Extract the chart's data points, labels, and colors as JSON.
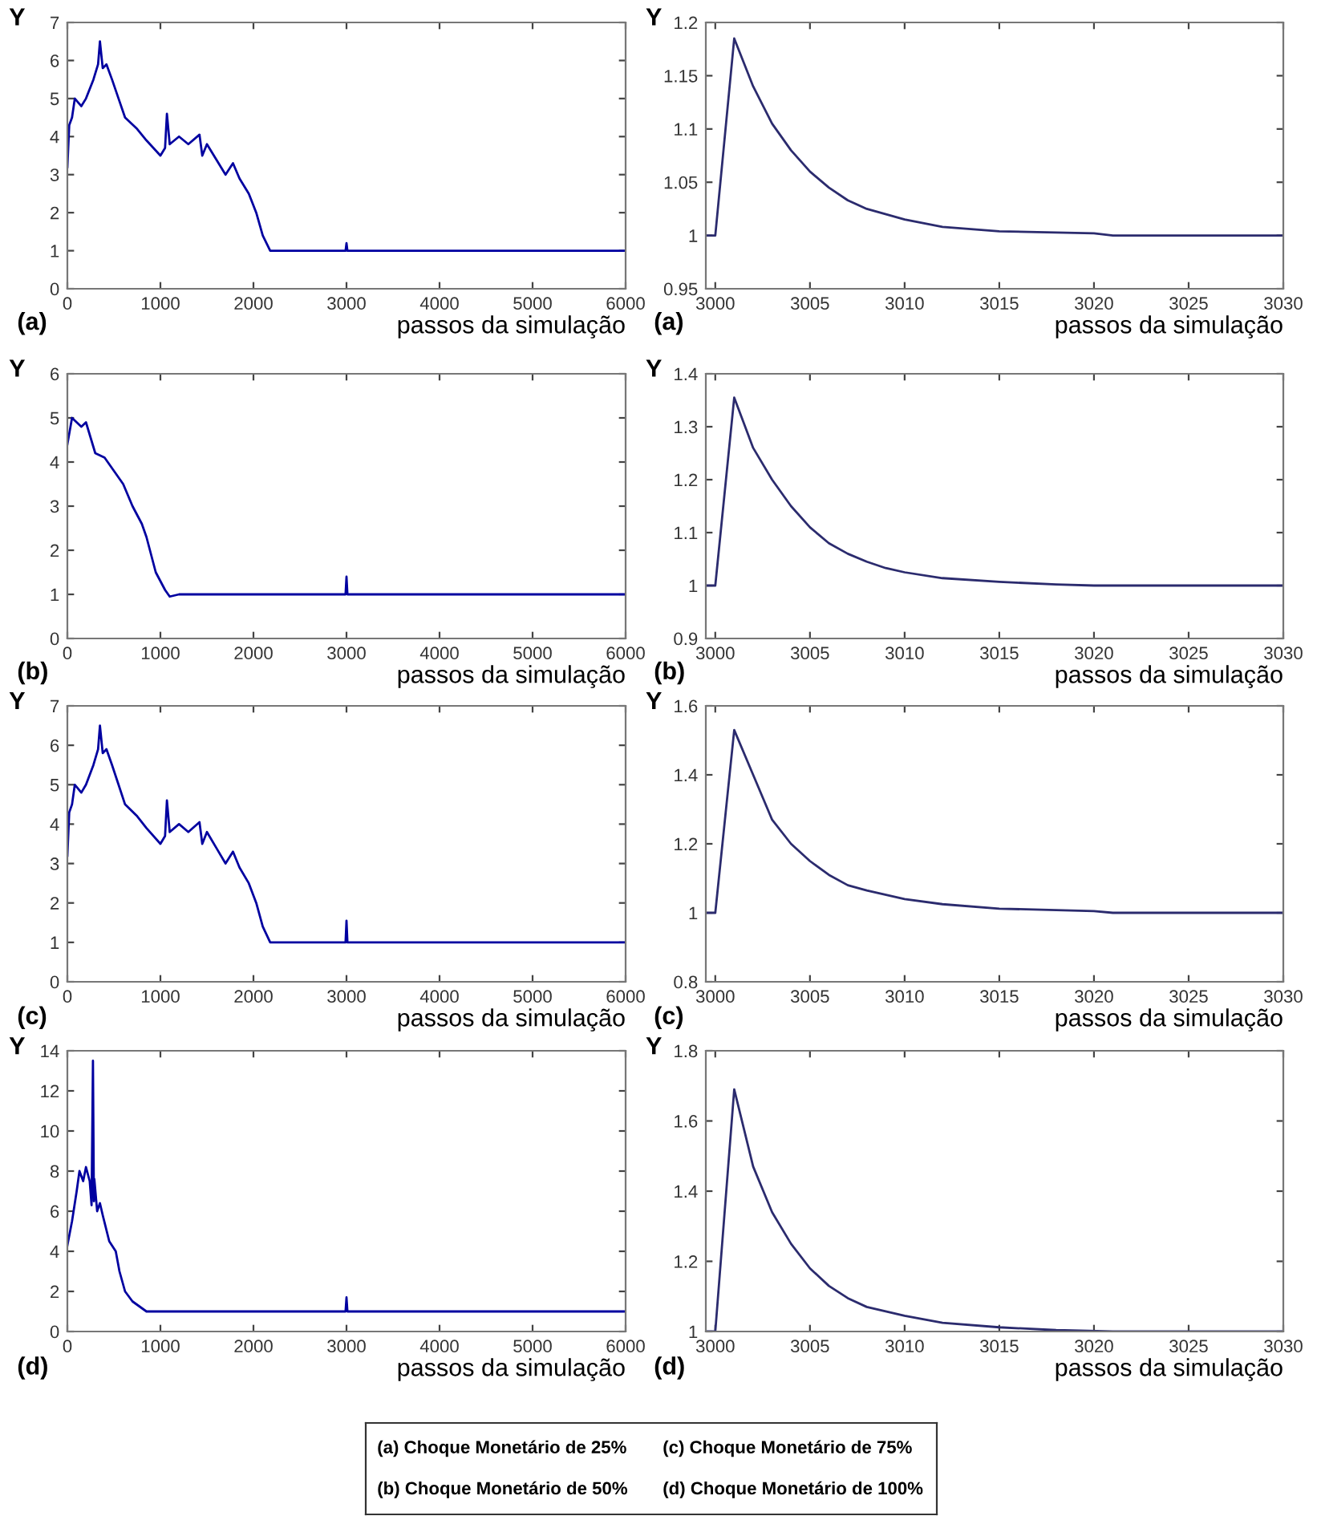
{
  "chart_data": [
    {
      "type": "line",
      "xlabel": "passos da simulação",
      "ylabel": "Y",
      "annotations": [
        "(a)"
      ],
      "xlim": [
        0,
        6000
      ],
      "ylim": [
        0,
        7
      ],
      "xticks": [
        0,
        1000,
        2000,
        3000,
        4000,
        5000,
        6000
      ],
      "yticks": [
        0,
        1,
        2,
        3,
        4,
        5,
        6,
        7
      ],
      "x": [
        0,
        20,
        50,
        80,
        150,
        200,
        280,
        330,
        350,
        380,
        420,
        480,
        550,
        620,
        750,
        850,
        1000,
        1050,
        1070,
        1100,
        1200,
        1300,
        1420,
        1450,
        1500,
        1600,
        1700,
        1780,
        1850,
        1950,
        2030,
        2100,
        2180,
        2990,
        3000,
        3010,
        6000
      ],
      "series": [
        {
          "color": "#0000a0",
          "values": [
            3.2,
            4.3,
            4.5,
            5.0,
            4.8,
            5.0,
            5.5,
            5.9,
            6.5,
            5.8,
            5.9,
            5.5,
            5.0,
            4.5,
            4.2,
            3.9,
            3.5,
            3.7,
            4.6,
            3.8,
            4.0,
            3.8,
            4.05,
            3.5,
            3.8,
            3.4,
            3.0,
            3.3,
            2.9,
            2.5,
            2.0,
            1.4,
            1.0,
            1.0,
            1.2,
            1.0,
            1.0
          ]
        }
      ]
    },
    {
      "type": "line",
      "xlabel": "passos da simulação",
      "ylabel": "Y",
      "annotations": [
        "(a)"
      ],
      "xlim": [
        2999.5,
        3030
      ],
      "ylim": [
        0.95,
        1.2
      ],
      "xticks": [
        3000,
        3005,
        3010,
        3015,
        3020,
        3025,
        3030
      ],
      "yticks": [
        0.95,
        1,
        1.05,
        1.1,
        1.15,
        1.2
      ],
      "x": [
        2999.5,
        3000,
        3001,
        3002,
        3003,
        3004,
        3005,
        3006,
        3007,
        3008,
        3010,
        3012,
        3015,
        3020,
        3021,
        3030
      ],
      "series": [
        {
          "color": "#2b2b6e",
          "values": [
            1,
            1,
            1.185,
            1.14,
            1.105,
            1.08,
            1.06,
            1.045,
            1.033,
            1.025,
            1.015,
            1.008,
            1.004,
            1.002,
            1.0,
            1.0
          ]
        }
      ]
    },
    {
      "type": "line",
      "xlabel": "passos da simulação",
      "ylabel": "Y",
      "annotations": [
        "(b)"
      ],
      "xlim": [
        0,
        6000
      ],
      "ylim": [
        0,
        6
      ],
      "xticks": [
        0,
        1000,
        2000,
        3000,
        4000,
        5000,
        6000
      ],
      "yticks": [
        0,
        1,
        2,
        3,
        4,
        5,
        6
      ],
      "x": [
        0,
        50,
        150,
        200,
        300,
        400,
        500,
        600,
        700,
        800,
        850,
        950,
        1050,
        1100,
        1200,
        2990,
        3000,
        3010,
        6000
      ],
      "series": [
        {
          "color": "#0000a0",
          "values": [
            4.4,
            5.0,
            4.8,
            4.9,
            4.2,
            4.1,
            3.8,
            3.5,
            3.0,
            2.6,
            2.3,
            1.5,
            1.1,
            0.95,
            1.0,
            1.0,
            1.4,
            1.0,
            1.0
          ]
        }
      ]
    },
    {
      "type": "line",
      "xlabel": "passos da simulação",
      "ylabel": "Y",
      "annotations": [
        "(b)"
      ],
      "xlim": [
        2999.5,
        3030
      ],
      "ylim": [
        0.9,
        1.4
      ],
      "xticks": [
        3000,
        3005,
        3010,
        3015,
        3020,
        3025,
        3030
      ],
      "yticks": [
        0.9,
        1,
        1.1,
        1.2,
        1.3,
        1.4
      ],
      "x": [
        2999.5,
        3000,
        3001,
        3002,
        3003,
        3004,
        3005,
        3006,
        3007,
        3008,
        3009,
        3010,
        3012,
        3015,
        3018,
        3020,
        3030
      ],
      "series": [
        {
          "color": "#2b2b6e",
          "values": [
            1,
            1,
            1.355,
            1.26,
            1.2,
            1.15,
            1.11,
            1.08,
            1.06,
            1.045,
            1.033,
            1.025,
            1.014,
            1.007,
            1.002,
            1.0,
            1.0
          ]
        }
      ]
    },
    {
      "type": "line",
      "xlabel": "passos da simulação",
      "ylabel": "Y",
      "annotations": [
        "(c)"
      ],
      "xlim": [
        0,
        6000
      ],
      "ylim": [
        0,
        7
      ],
      "xticks": [
        0,
        1000,
        2000,
        3000,
        4000,
        5000,
        6000
      ],
      "yticks": [
        0,
        1,
        2,
        3,
        4,
        5,
        6,
        7
      ],
      "x": [
        0,
        20,
        50,
        80,
        150,
        200,
        280,
        330,
        350,
        380,
        420,
        480,
        550,
        620,
        750,
        850,
        1000,
        1050,
        1070,
        1100,
        1200,
        1300,
        1420,
        1450,
        1500,
        1600,
        1700,
        1780,
        1850,
        1950,
        2030,
        2100,
        2180,
        2990,
        3000,
        3010,
        6000
      ],
      "series": [
        {
          "color": "#0000a0",
          "values": [
            3.2,
            4.3,
            4.5,
            5.0,
            4.8,
            5.0,
            5.5,
            5.9,
            6.5,
            5.8,
            5.9,
            5.5,
            5.0,
            4.5,
            4.2,
            3.9,
            3.5,
            3.7,
            4.6,
            3.8,
            4.0,
            3.8,
            4.05,
            3.5,
            3.8,
            3.4,
            3.0,
            3.3,
            2.9,
            2.5,
            2.0,
            1.4,
            1.0,
            1.0,
            1.55,
            1.0,
            1.0
          ]
        }
      ]
    },
    {
      "type": "line",
      "xlabel": "passos da simulação",
      "ylabel": "Y",
      "annotations": [
        "(c)"
      ],
      "xlim": [
        2999.5,
        3030
      ],
      "ylim": [
        0.8,
        1.6
      ],
      "xticks": [
        3000,
        3005,
        3010,
        3015,
        3020,
        3025,
        3030
      ],
      "yticks": [
        0.8,
        1,
        1.2,
        1.4,
        1.6
      ],
      "x": [
        2999.5,
        3000,
        3001,
        3002,
        3003,
        3004,
        3005,
        3006,
        3007,
        3008,
        3010,
        3012,
        3015,
        3020,
        3021,
        3030
      ],
      "series": [
        {
          "color": "#2b2b6e",
          "values": [
            1,
            1,
            1.53,
            1.4,
            1.27,
            1.2,
            1.15,
            1.11,
            1.08,
            1.065,
            1.04,
            1.025,
            1.012,
            1.005,
            1.0,
            1.0
          ]
        }
      ]
    },
    {
      "type": "line",
      "xlabel": "passos da simulação",
      "ylabel": "Y",
      "annotations": [
        "(d)"
      ],
      "xlim": [
        0,
        6000
      ],
      "ylim": [
        0,
        14
      ],
      "xticks": [
        0,
        1000,
        2000,
        3000,
        4000,
        5000,
        6000
      ],
      "yticks": [
        0,
        2,
        4,
        6,
        8,
        10,
        12,
        14
      ],
      "x": [
        0,
        50,
        100,
        130,
        170,
        200,
        240,
        260,
        275,
        285,
        290,
        320,
        350,
        380,
        450,
        520,
        560,
        620,
        700,
        850,
        2990,
        3000,
        3010,
        6000
      ],
      "series": [
        {
          "color": "#0000a0",
          "values": [
            4.3,
            5.5,
            7.0,
            8.0,
            7.5,
            8.2,
            7.5,
            6.3,
            13.5,
            6.5,
            7.6,
            6.0,
            6.4,
            5.8,
            4.5,
            4.0,
            3.0,
            2.0,
            1.5,
            1.0,
            1.0,
            1.7,
            1.0,
            1.0
          ]
        }
      ]
    },
    {
      "type": "line",
      "xlabel": "passos da simulação",
      "ylabel": "Y",
      "annotations": [
        "(d)"
      ],
      "xlim": [
        2999.5,
        3030
      ],
      "ylim": [
        1,
        1.8
      ],
      "xticks": [
        3000,
        3005,
        3010,
        3015,
        3020,
        3025,
        3030
      ],
      "yticks": [
        1,
        1.2,
        1.4,
        1.6,
        1.8
      ],
      "x": [
        2999.5,
        3000,
        3001,
        3002,
        3003,
        3004,
        3005,
        3006,
        3007,
        3008,
        3010,
        3012,
        3015,
        3018,
        3021,
        3030
      ],
      "series": [
        {
          "color": "#2b2b6e",
          "values": [
            1,
            1,
            1.69,
            1.47,
            1.34,
            1.25,
            1.18,
            1.13,
            1.095,
            1.07,
            1.045,
            1.025,
            1.012,
            1.004,
            1.0,
            1.0
          ]
        }
      ]
    },
    {
      "type": "other",
      "annotations": [
        "(a) Choque Monetário de 25%",
        "(b) Choque Monetário de 50%",
        "(c) Choque Monetário de 75%",
        "(d) Choque Monetário de 100%"
      ]
    }
  ]
}
